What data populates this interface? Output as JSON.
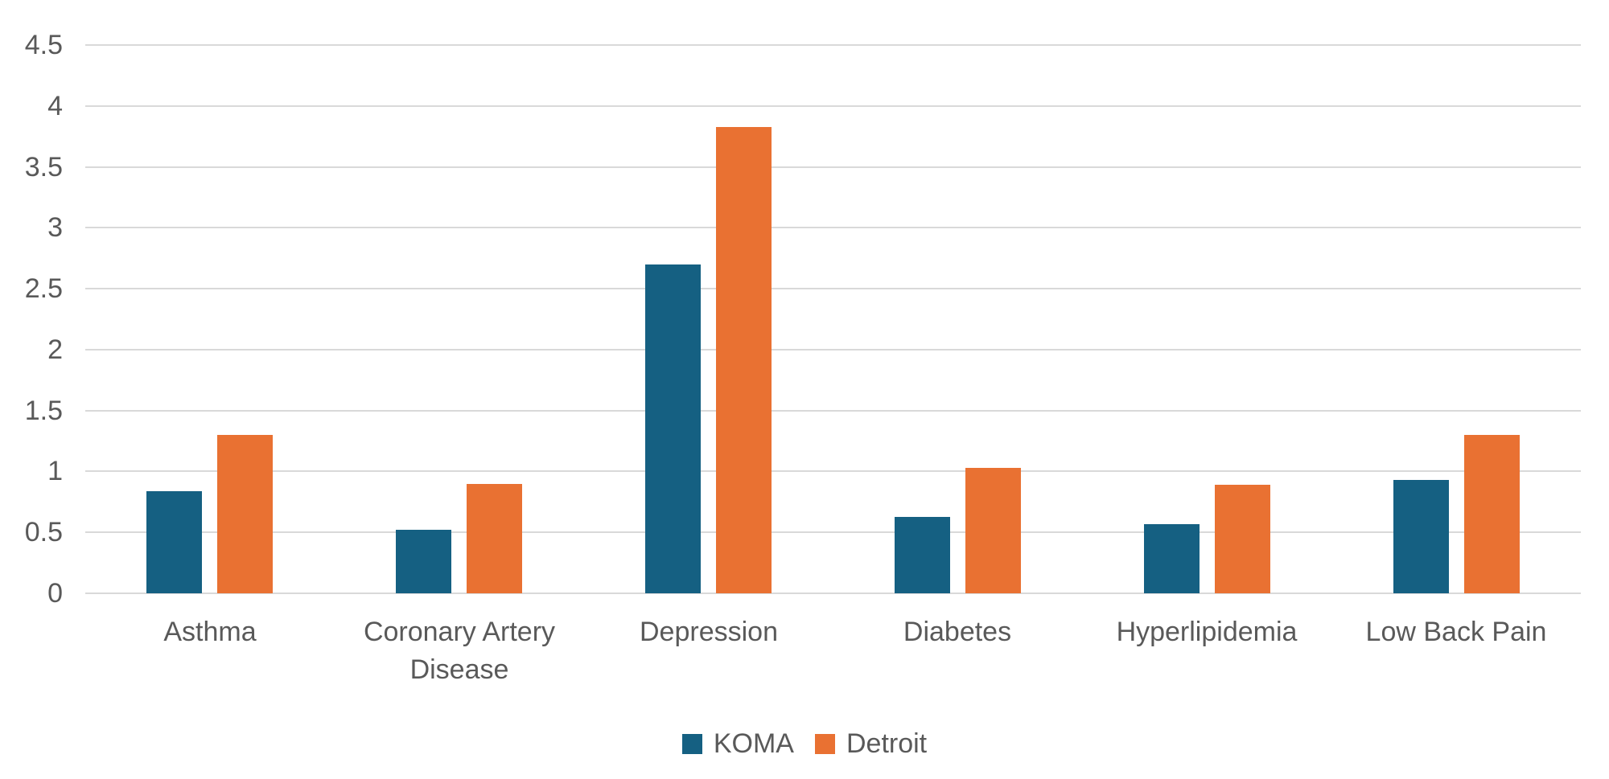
{
  "chart_data": {
    "type": "bar",
    "title": "",
    "xlabel": "",
    "ylabel": "",
    "categories": [
      "Asthma",
      "Coronary Artery Disease",
      "Depression",
      "Diabetes",
      "Hyperlipidemia",
      "Low Back Pain"
    ],
    "series": [
      {
        "name": "KOMA",
        "color": "#156082",
        "values": [
          0.84,
          0.52,
          2.7,
          0.63,
          0.57,
          0.93
        ]
      },
      {
        "name": "Detroit",
        "color": "#E97132",
        "values": [
          1.3,
          0.9,
          3.83,
          1.03,
          0.89,
          1.3
        ]
      }
    ],
    "ylim": [
      0,
      4.5
    ],
    "ytick_step": 0.5,
    "ytick_labels": [
      "4.5",
      "4",
      "3.5",
      "3",
      "2.5",
      "2",
      "1.5",
      "1",
      "0.5",
      "0"
    ],
    "grid": true,
    "legend_position": "bottom-center",
    "colors": {
      "gridline": "#D9D9D9",
      "axis_text": "#595959",
      "background": "#FFFFFF"
    }
  }
}
